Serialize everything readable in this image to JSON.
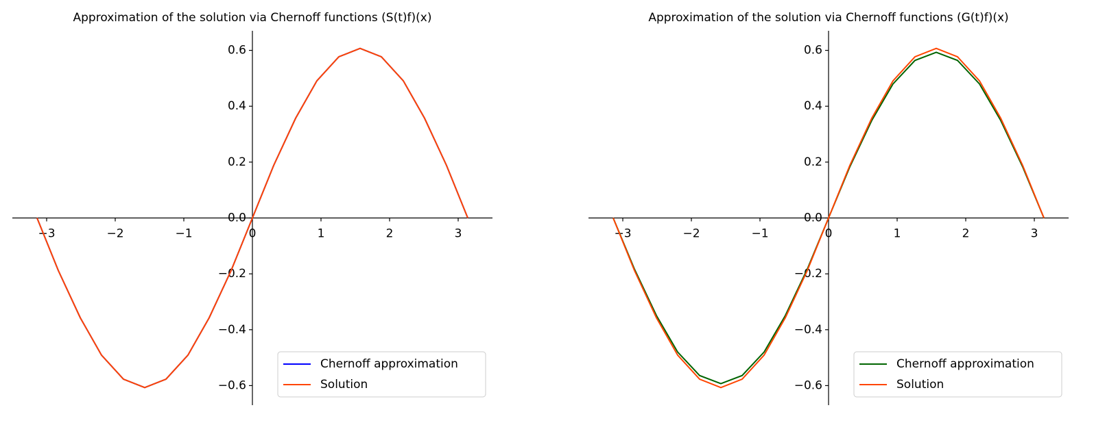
{
  "chart_data": [
    {
      "type": "line",
      "title": "Approximation of the solution via Chernoff functions (S(t)f)(x)",
      "x": [
        -3.14,
        -2.83,
        -2.51,
        -2.2,
        -1.88,
        -1.57,
        -1.26,
        -0.94,
        -0.63,
        -0.31,
        0,
        0.31,
        0.63,
        0.94,
        1.26,
        1.57,
        1.88,
        2.2,
        2.51,
        2.83,
        3.14
      ],
      "series": [
        {
          "name": "Chernoff approximation",
          "color": "#0000ff",
          "values": [
            0,
            -0.188,
            -0.357,
            -0.491,
            -0.577,
            -0.607,
            -0.577,
            -0.491,
            -0.357,
            -0.188,
            0,
            0.188,
            0.357,
            0.491,
            0.577,
            0.607,
            0.577,
            0.491,
            0.357,
            0.188,
            0
          ]
        },
        {
          "name": "Solution",
          "color": "#ff4500",
          "values": [
            0,
            -0.188,
            -0.357,
            -0.491,
            -0.577,
            -0.607,
            -0.577,
            -0.491,
            -0.357,
            -0.188,
            0,
            0.188,
            0.357,
            0.491,
            0.577,
            0.607,
            0.577,
            0.491,
            0.357,
            0.188,
            0
          ]
        }
      ],
      "xlim": [
        -3.5,
        3.5
      ],
      "ylim": [
        -0.67,
        0.67
      ],
      "xticks": [
        {
          "value": -3,
          "label": "−3"
        },
        {
          "value": -2,
          "label": "−2"
        },
        {
          "value": -1,
          "label": "−1"
        },
        0,
        1,
        2,
        3
      ],
      "yticks": [
        {
          "value": -0.6,
          "label": "−0.6"
        },
        {
          "value": -0.4,
          "label": "−0.4"
        },
        {
          "value": -0.2,
          "label": "−0.2"
        },
        {
          "value": 0,
          "label": "0.0"
        },
        0.2,
        0.4,
        0.6
      ],
      "legend": "lower right"
    },
    {
      "type": "line",
      "title": "Approximation of the solution via Chernoff functions (G(t)f)(x)",
      "x": [
        -3.14,
        -2.83,
        -2.51,
        -2.2,
        -1.88,
        -1.57,
        -1.26,
        -0.94,
        -0.63,
        -0.31,
        0,
        0.31,
        0.63,
        0.94,
        1.26,
        1.57,
        1.88,
        2.2,
        2.51,
        2.83,
        3.14
      ],
      "series": [
        {
          "name": "Chernoff approximation",
          "color": "#006400",
          "values": [
            0,
            -0.183,
            -0.349,
            -0.48,
            -0.564,
            -0.593,
            -0.564,
            -0.48,
            -0.349,
            -0.183,
            0,
            0.183,
            0.349,
            0.48,
            0.564,
            0.593,
            0.564,
            0.48,
            0.349,
            0.183,
            0
          ]
        },
        {
          "name": "Solution",
          "color": "#ff4500",
          "values": [
            0,
            -0.188,
            -0.357,
            -0.491,
            -0.577,
            -0.607,
            -0.577,
            -0.491,
            -0.357,
            -0.188,
            0,
            0.188,
            0.357,
            0.491,
            0.577,
            0.607,
            0.577,
            0.491,
            0.357,
            0.188,
            0
          ]
        }
      ],
      "xlim": [
        -3.5,
        3.5
      ],
      "ylim": [
        -0.67,
        0.67
      ],
      "xticks": [
        {
          "value": -3,
          "label": "−3"
        },
        {
          "value": -2,
          "label": "−2"
        },
        {
          "value": -1,
          "label": "−1"
        },
        0,
        1,
        2,
        3
      ],
      "yticks": [
        {
          "value": -0.6,
          "label": "−0.6"
        },
        {
          "value": -0.4,
          "label": "−0.4"
        },
        {
          "value": -0.2,
          "label": "−0.2"
        },
        {
          "value": 0,
          "label": "0.0"
        },
        0.2,
        0.4,
        0.6
      ],
      "legend": "lower right"
    }
  ]
}
